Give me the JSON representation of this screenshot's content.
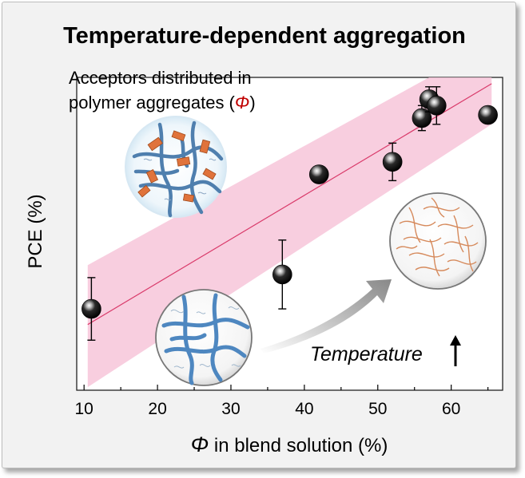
{
  "chart_data": {
    "type": "scatter",
    "title": "Temperature-dependent aggregation",
    "xlabel": {
      "symbol": "Φ",
      "text": " in blend solution (%)"
    },
    "ylabel": "PCE (%)",
    "xlim": [
      9,
      67
    ],
    "ylim": [
      0,
      100
    ],
    "x_ticks": [
      10,
      20,
      30,
      40,
      50,
      60
    ],
    "y_ticks_labeled": false,
    "grid": false,
    "points": [
      {
        "x": 11,
        "y": 26,
        "err": 10
      },
      {
        "x": 37,
        "y": 37,
        "err": 11
      },
      {
        "x": 42,
        "y": 69,
        "err": 0
      },
      {
        "x": 52,
        "y": 73,
        "err": 6
      },
      {
        "x": 56,
        "y": 87,
        "err": 4
      },
      {
        "x": 57,
        "y": 93,
        "err": 4
      },
      {
        "x": 58,
        "y": 91,
        "err": 6
      },
      {
        "x": 65,
        "y": 88,
        "err": 0
      }
    ],
    "fit": {
      "y_at_x_min": 21,
      "y_at_x_max": 98,
      "x_min": 10.5,
      "x_max": 65.5
    },
    "confidence_band": {
      "upper_at_x_min": 40,
      "upper_at_x_max": 111,
      "lower_at_x_min": 1,
      "lower_at_x_max": 85
    },
    "annotations": {
      "inset_label_line1": "Acceptors distributed in",
      "inset_label_line2_prefix": "polymer aggregates (",
      "inset_label_line2_symbol": "Φ",
      "inset_label_line2_suffix": ")",
      "temperature_label": "Temperature"
    },
    "colors": {
      "band": "#f7c6d9",
      "fit_line": "#d93a6a",
      "phi_symbol_red": "#c00000",
      "marker": "#111111",
      "arrow": "#9a9a9a"
    }
  }
}
